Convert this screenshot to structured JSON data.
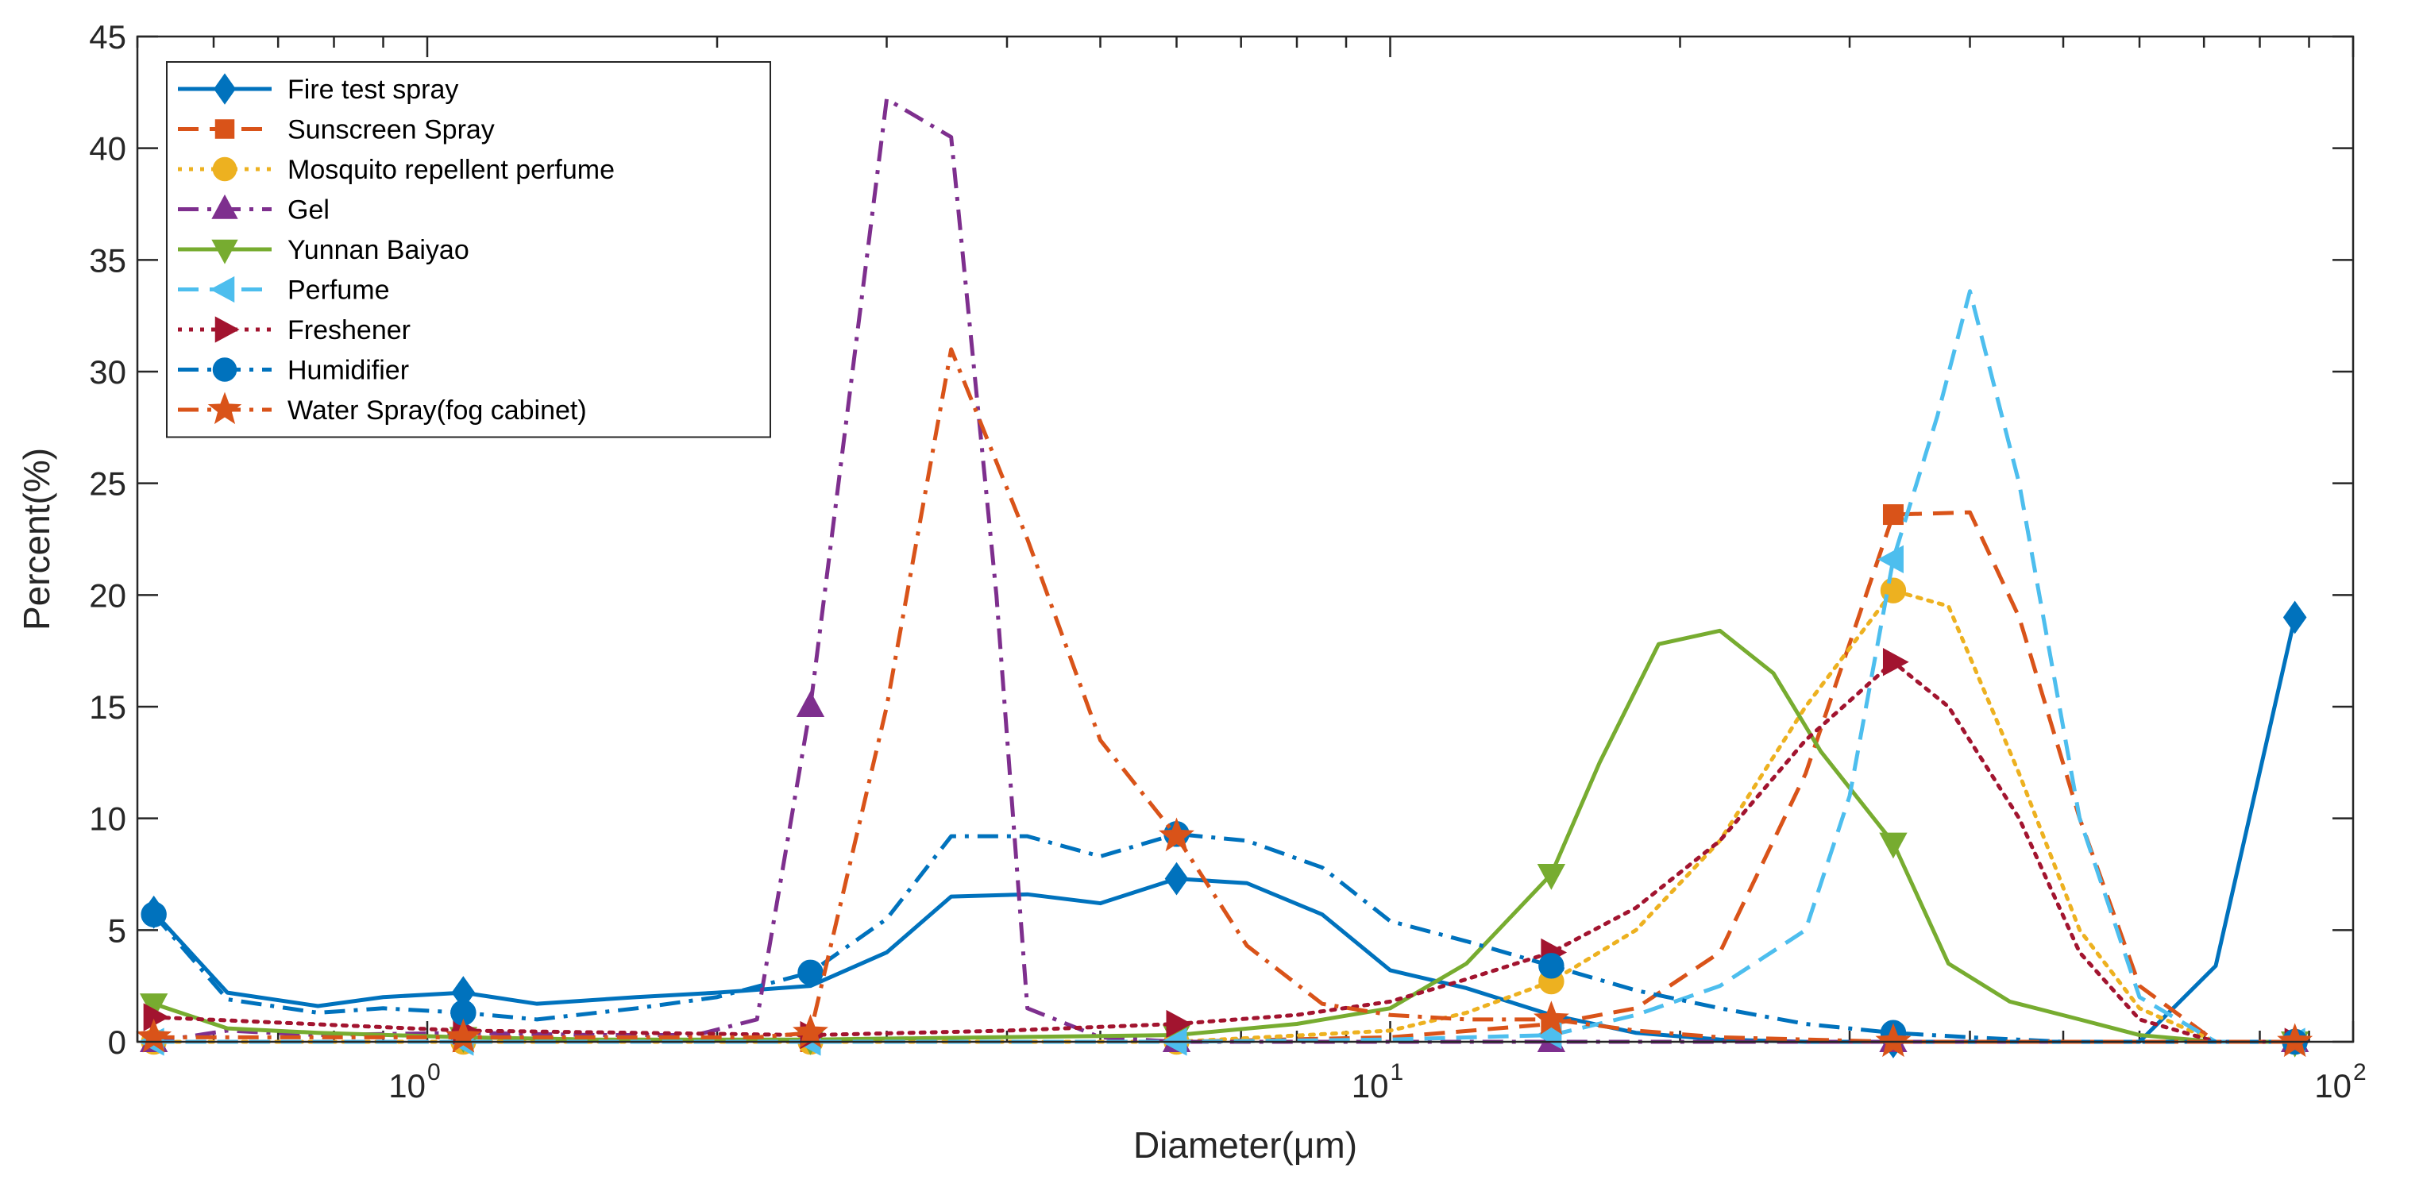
{
  "chart_data": {
    "type": "line",
    "title": "",
    "xlabel": "Diameter(μm)",
    "ylabel": "Percent(%)",
    "xscale": "log",
    "xlim": [
      0.5,
      100
    ],
    "ylim": [
      0,
      45
    ],
    "y_ticks": [
      "0",
      "5",
      "10",
      "15",
      "20",
      "25",
      "30",
      "35",
      "40",
      "45"
    ],
    "x_ticks": [
      {
        "base": "10",
        "exp": "0"
      },
      {
        "base": "10",
        "exp": "1"
      },
      {
        "base": "10",
        "exp": "2"
      }
    ],
    "legend_position": "top-left",
    "series": [
      {
        "name": "Fire test spray",
        "color": "#0072BD",
        "dash": "solid",
        "marker": "diamond",
        "x": [
          0.52,
          0.62,
          0.77,
          0.9,
          1.09,
          1.3,
          1.65,
          2.0,
          2.5,
          3.0,
          3.5,
          4.2,
          5.0,
          6.0,
          7.1,
          8.5,
          10.0,
          12.0,
          14.7,
          18.0,
          22.0,
          27.0,
          33.3,
          40.0,
          50.0,
          60.0,
          72.0,
          87.0
        ],
        "y": [
          5.8,
          2.2,
          1.6,
          2.0,
          2.2,
          1.7,
          2.0,
          2.2,
          2.5,
          4.0,
          6.5,
          6.6,
          6.2,
          7.3,
          7.1,
          5.7,
          3.2,
          2.4,
          1.2,
          0.4,
          0.1,
          0.0,
          0.0,
          0.0,
          0.0,
          0.0,
          3.4,
          19.0
        ],
        "marker_x": [
          0.52,
          1.09,
          6.0,
          33.3,
          87.0
        ],
        "marker_y": [
          5.8,
          2.2,
          7.3,
          0.0,
          19.0
        ]
      },
      {
        "name": "Sunscreen Spray",
        "color": "#D95319",
        "dash": "dashed",
        "marker": "square",
        "x": [
          0.52,
          1.09,
          2.5,
          6.0,
          10.0,
          14.7,
          18.0,
          22.0,
          27.0,
          33.3,
          40.0,
          45.0,
          52.0,
          60.0,
          72.0,
          87.0
        ],
        "y": [
          0.0,
          0.0,
          0.0,
          0.0,
          0.2,
          0.8,
          1.5,
          4.0,
          12.0,
          23.6,
          23.7,
          19.0,
          10.0,
          2.5,
          0.0,
          0.0
        ],
        "marker_x": [
          0.52,
          1.09,
          2.5,
          6.0,
          14.7,
          33.3,
          87.0
        ],
        "marker_y": [
          0.0,
          0.0,
          0.0,
          0.0,
          0.8,
          23.6,
          0.0
        ]
      },
      {
        "name": "Mosquito repellent perfume",
        "color": "#EDB120",
        "dash": "dotted",
        "marker": "circle",
        "x": [
          0.52,
          1.09,
          2.5,
          6.0,
          10.0,
          12.0,
          14.7,
          18.0,
          22.0,
          27.0,
          33.3,
          38.0,
          45.0,
          52.0,
          60.0,
          72.0,
          87.0
        ],
        "y": [
          0.0,
          0.0,
          0.0,
          0.0,
          0.5,
          1.3,
          2.7,
          5.0,
          9.0,
          15.0,
          20.2,
          19.5,
          12.0,
          5.0,
          1.5,
          0.0,
          0.0
        ],
        "marker_x": [
          0.52,
          1.09,
          2.5,
          6.0,
          14.7,
          33.3,
          87.0
        ],
        "marker_y": [
          0.0,
          0.0,
          0.0,
          0.0,
          2.7,
          20.2,
          0.0
        ]
      },
      {
        "name": "Gel",
        "color": "#7E2F8E",
        "dash": "dashdot",
        "marker": "triangle-up",
        "x": [
          0.52,
          0.62,
          0.77,
          1.09,
          1.5,
          1.9,
          2.2,
          2.5,
          3.0,
          3.5,
          3.9,
          4.2,
          5.0,
          6.0,
          10.0,
          14.7,
          33.3,
          87.0
        ],
        "y": [
          0.0,
          0.5,
          0.3,
          0.4,
          0.3,
          0.3,
          1.0,
          15.0,
          42.2,
          40.5,
          20.0,
          1.5,
          0.2,
          0.0,
          0.0,
          0.0,
          0.0,
          0.0
        ],
        "marker_x": [
          0.52,
          1.09,
          2.5,
          6.0,
          14.7,
          33.3,
          87.0
        ],
        "marker_y": [
          0.0,
          0.4,
          15.0,
          0.0,
          0.0,
          0.0,
          0.0
        ]
      },
      {
        "name": "Yunnan Baiyao",
        "color": "#77AC30",
        "dash": "solid",
        "marker": "triangle-down",
        "x": [
          0.52,
          0.62,
          0.77,
          1.09,
          1.5,
          2.0,
          2.5,
          6.0,
          8.0,
          10.0,
          12.0,
          14.7,
          16.5,
          19.0,
          22.0,
          25.0,
          28.0,
          33.3,
          38.0,
          44.0,
          52.0,
          60.0,
          72.0,
          87.0
        ],
        "y": [
          1.7,
          0.6,
          0.4,
          0.2,
          0.1,
          0.1,
          0.1,
          0.3,
          0.8,
          1.5,
          3.5,
          7.5,
          12.5,
          17.8,
          18.4,
          16.5,
          13.0,
          8.9,
          3.5,
          1.8,
          1.0,
          0.3,
          0.0,
          0.0
        ],
        "marker_x": [
          0.52,
          1.09,
          2.5,
          6.0,
          14.7,
          33.3,
          87.0
        ],
        "marker_y": [
          1.7,
          0.2,
          0.1,
          0.3,
          7.5,
          8.9,
          0.0
        ]
      },
      {
        "name": "Perfume",
        "color": "#4DBEEE",
        "dash": "dashed",
        "marker": "triangle-left",
        "x": [
          0.52,
          1.09,
          2.5,
          6.0,
          10.0,
          14.7,
          18.0,
          22.0,
          27.0,
          30.0,
          33.3,
          37.0,
          40.0,
          45.0,
          52.0,
          60.0,
          72.0,
          87.0
        ],
        "y": [
          0.0,
          0.0,
          0.0,
          0.0,
          0.1,
          0.3,
          1.2,
          2.5,
          5.0,
          11.0,
          21.6,
          28.0,
          33.6,
          25.0,
          10.0,
          2.0,
          0.0,
          0.0
        ],
        "marker_x": [
          0.52,
          1.09,
          2.5,
          6.0,
          14.7,
          33.3,
          87.0
        ],
        "marker_y": [
          0.0,
          0.0,
          0.0,
          0.0,
          0.3,
          21.6,
          0.0
        ]
      },
      {
        "name": "Freshener",
        "color": "#A2142F",
        "dash": "dotted",
        "marker": "triangle-right",
        "x": [
          0.52,
          1.09,
          2.5,
          4.0,
          6.0,
          8.0,
          10.0,
          12.0,
          14.7,
          18.0,
          22.0,
          27.0,
          33.3,
          38.0,
          45.0,
          52.0,
          60.0,
          72.0,
          87.0
        ],
        "y": [
          1.1,
          0.5,
          0.3,
          0.5,
          0.8,
          1.2,
          1.8,
          2.8,
          4.0,
          6.0,
          9.0,
          13.5,
          17.0,
          15.0,
          10.0,
          4.0,
          1.0,
          0.0,
          0.0
        ],
        "marker_x": [
          0.52,
          1.09,
          2.5,
          6.0,
          14.7,
          33.3,
          87.0
        ],
        "marker_y": [
          1.1,
          0.5,
          0.3,
          0.8,
          4.0,
          17.0,
          0.0
        ]
      },
      {
        "name": "Humidifier",
        "color": "#0072BD",
        "dash": "dashdot",
        "marker": "circle",
        "x": [
          0.52,
          0.62,
          0.77,
          0.9,
          1.09,
          1.3,
          1.65,
          2.0,
          2.5,
          3.0,
          3.5,
          4.2,
          5.0,
          6.0,
          7.1,
          8.5,
          10.0,
          12.0,
          14.7,
          18.0,
          22.0,
          27.0,
          33.3,
          40.0,
          50.0,
          60.0,
          72.0,
          87.0
        ],
        "y": [
          5.7,
          1.9,
          1.3,
          1.5,
          1.3,
          1.0,
          1.5,
          2.0,
          3.1,
          5.5,
          9.2,
          9.2,
          8.3,
          9.3,
          9.0,
          7.8,
          5.4,
          4.5,
          3.4,
          2.3,
          1.5,
          0.8,
          0.4,
          0.2,
          0.0,
          0.0,
          0.0,
          0.0
        ],
        "marker_x": [
          0.52,
          1.09,
          2.5,
          6.0,
          14.7,
          33.3,
          87.0
        ],
        "marker_y": [
          5.7,
          1.3,
          3.1,
          9.3,
          3.4,
          0.4,
          0.0
        ]
      },
      {
        "name": "Water Spray(fog cabinet)",
        "color": "#D95319",
        "dash": "dashdot",
        "marker": "star",
        "x": [
          0.52,
          1.09,
          2.2,
          2.5,
          3.0,
          3.5,
          4.2,
          5.0,
          6.0,
          7.1,
          8.5,
          10.0,
          12.0,
          14.7,
          18.0,
          22.0,
          33.3,
          87.0
        ],
        "y": [
          0.2,
          0.2,
          0.2,
          0.4,
          15.0,
          31.0,
          22.5,
          13.5,
          9.2,
          4.3,
          1.7,
          1.2,
          1.0,
          1.0,
          0.5,
          0.2,
          0.0,
          0.0
        ],
        "marker_x": [
          0.52,
          1.09,
          2.5,
          6.0,
          14.7,
          33.3,
          87.0
        ],
        "marker_y": [
          0.2,
          0.2,
          0.4,
          9.2,
          1.0,
          0.0,
          0.0
        ]
      }
    ]
  }
}
